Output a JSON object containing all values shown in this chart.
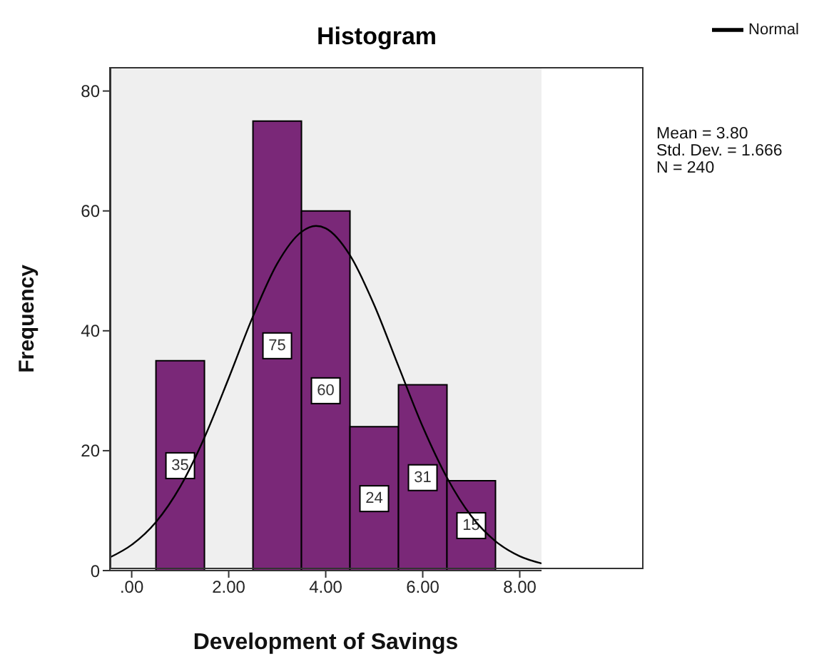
{
  "chart_data": {
    "type": "histogram",
    "title": "Histogram",
    "xlabel": "Development of Savings",
    "ylabel": "Frequency",
    "bins": [
      0.5,
      1.5,
      2.5,
      3.5,
      4.5,
      5.5,
      6.5,
      7.5
    ],
    "series": [
      {
        "color": "#7a2878",
        "values": [
          35,
          0,
          75,
          60,
          24,
          31,
          15
        ],
        "value_labels": [
          "35",
          null,
          "75",
          "60",
          "24",
          "31",
          "15"
        ]
      },
      {
        "type": "line",
        "name": "Normal",
        "color": "#000000",
        "x": [
          -0.45,
          0,
          0.5,
          1,
          1.5,
          2,
          2.5,
          3,
          3.5,
          3.8,
          4,
          4.5,
          5,
          5.5,
          6,
          6.5,
          7,
          7.5,
          8,
          8.45
        ],
        "values": [
          2.2,
          4.3,
          8.1,
          14,
          22.2,
          32.1,
          42.4,
          51.2,
          56.5,
          57.5,
          57.1,
          52.6,
          44.3,
          34.1,
          24,
          15.5,
          9.1,
          4.9,
          2.4,
          1.2
        ]
      }
    ],
    "xlim": [
      -0.45,
      8.45
    ],
    "xticks": [
      {
        "value": 0,
        "label": ".00"
      },
      {
        "value": 2,
        "label": "2.00"
      },
      {
        "value": 4,
        "label": "4.00"
      },
      {
        "value": 6,
        "label": "6.00"
      },
      {
        "value": 8,
        "label": "8.00"
      }
    ],
    "ylim": [
      0,
      84
    ],
    "yticks": [
      0,
      20,
      40,
      60,
      80
    ],
    "legend": "top right",
    "marker": "none",
    "annotations": [
      "Mean = 3.80",
      "Std. Dev. = 1.666",
      "N = 240"
    ]
  }
}
